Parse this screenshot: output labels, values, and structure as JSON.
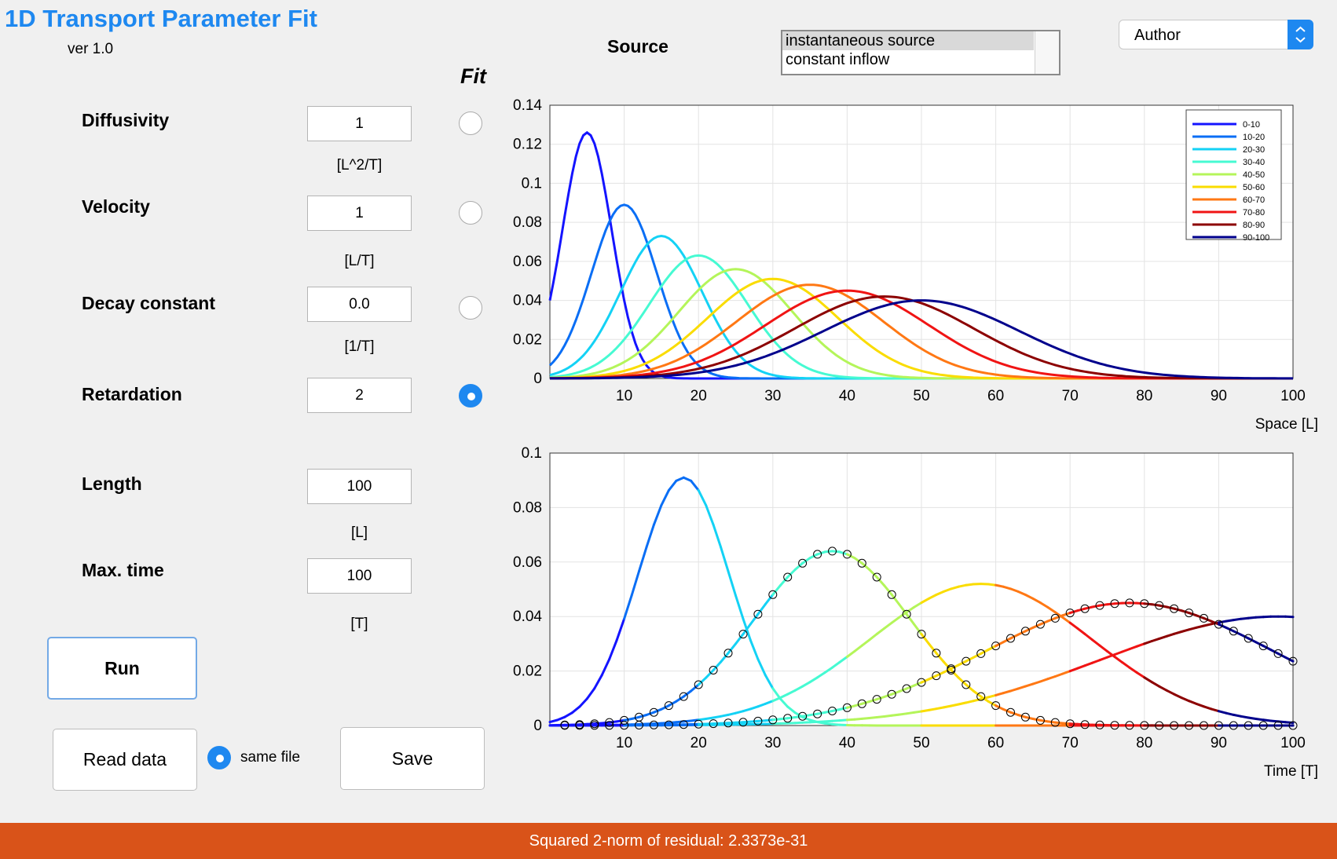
{
  "app": {
    "title": "1D Transport Parameter Fit",
    "version": "ver 1.0"
  },
  "source": {
    "label": "Source",
    "options": [
      "instantaneous source",
      "constant inflow"
    ],
    "selected": 0
  },
  "author_menu": {
    "value": "Author"
  },
  "fit_header": "Fit",
  "params": [
    {
      "label": "Diffusivity",
      "value": "1",
      "unit": "[L^2/T]",
      "fit": false
    },
    {
      "label": "Velocity",
      "value": "1",
      "unit": "[L/T]",
      "fit": false
    },
    {
      "label": "Decay constant",
      "value": "0.0",
      "unit": "[1/T]",
      "fit": false
    },
    {
      "label": "Retardation",
      "value": "2",
      "unit": "",
      "fit": true
    },
    {
      "label": "Length",
      "value": "100",
      "unit": "[L]"
    },
    {
      "label": "Max. time",
      "value": "100",
      "unit": "[T]"
    }
  ],
  "buttons": {
    "run": "Run",
    "read_data": "Read data",
    "same_file": "same file",
    "save": "Save"
  },
  "same_file_checked": true,
  "status": "Squared 2-norm of residual: 2.3373e-31",
  "colors": {
    "accent": "#1e88f0",
    "status_bar": "#d95319",
    "series": [
      "#1414ff",
      "#0a6ef5",
      "#14d2f5",
      "#46fad2",
      "#b4f55a",
      "#fadc00",
      "#ff7814",
      "#f01414",
      "#8c0000",
      "#00008c"
    ]
  },
  "chart_data": [
    {
      "type": "line",
      "xlabel": "Space [L]",
      "xlim": [
        0,
        100
      ],
      "ylim": [
        0,
        0.14
      ],
      "xticks": [
        10,
        20,
        30,
        40,
        50,
        60,
        70,
        80,
        90,
        100
      ],
      "yticks": [
        0,
        0.02,
        0.04,
        0.06,
        0.08,
        0.1,
        0.12,
        0.14
      ],
      "grid": true,
      "legend_position": "top-right",
      "series": [
        {
          "name": "0-10",
          "peak_x": 5,
          "peak_y": 0.126
        },
        {
          "name": "10-20",
          "peak_x": 10,
          "peak_y": 0.089
        },
        {
          "name": "20-30",
          "peak_x": 15,
          "peak_y": 0.073
        },
        {
          "name": "30-40",
          "peak_x": 20,
          "peak_y": 0.063
        },
        {
          "name": "40-50",
          "peak_x": 25,
          "peak_y": 0.056
        },
        {
          "name": "50-60",
          "peak_x": 30,
          "peak_y": 0.051
        },
        {
          "name": "60-70",
          "peak_x": 35,
          "peak_y": 0.048
        },
        {
          "name": "70-80",
          "peak_x": 40,
          "peak_y": 0.045
        },
        {
          "name": "80-90",
          "peak_x": 45,
          "peak_y": 0.042
        },
        {
          "name": "90-100",
          "peak_x": 50,
          "peak_y": 0.04
        }
      ]
    },
    {
      "type": "line",
      "xlabel": "Time [T]",
      "xlim": [
        0,
        100
      ],
      "ylim": [
        0,
        0.1
      ],
      "xticks": [
        10,
        20,
        30,
        40,
        50,
        60,
        70,
        80,
        90,
        100
      ],
      "yticks": [
        0,
        0.02,
        0.04,
        0.06,
        0.08,
        0.1
      ],
      "grid": true,
      "curves": [
        {
          "location": 10,
          "peak_x": 18,
          "peak_y": 0.091
        },
        {
          "location": 30,
          "peak_x": 38,
          "peak_y": 0.064
        },
        {
          "location": 50,
          "peak_x": 58,
          "peak_y": 0.052
        },
        {
          "location": 70,
          "peak_x": 78,
          "peak_y": 0.045
        },
        {
          "location": 90,
          "peak_x": 98,
          "peak_y": 0.04
        }
      ],
      "observations": [
        {
          "location": 30,
          "x_start": 2,
          "x_end": 100,
          "x_step": 2
        },
        {
          "location": 70,
          "x_start": 2,
          "x_end": 100,
          "x_step": 2
        }
      ]
    }
  ]
}
